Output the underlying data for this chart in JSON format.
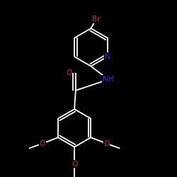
{
  "bg": "#000000",
  "bond_color": "#ffffff",
  "Br_color": "#cc3333",
  "N_color": "#3333cc",
  "O_color": "#cc3333",
  "lw": 1.3,
  "fs": 7.5,
  "xlim": [
    -3.0,
    3.5
  ],
  "ylim": [
    -3.8,
    3.5
  ]
}
